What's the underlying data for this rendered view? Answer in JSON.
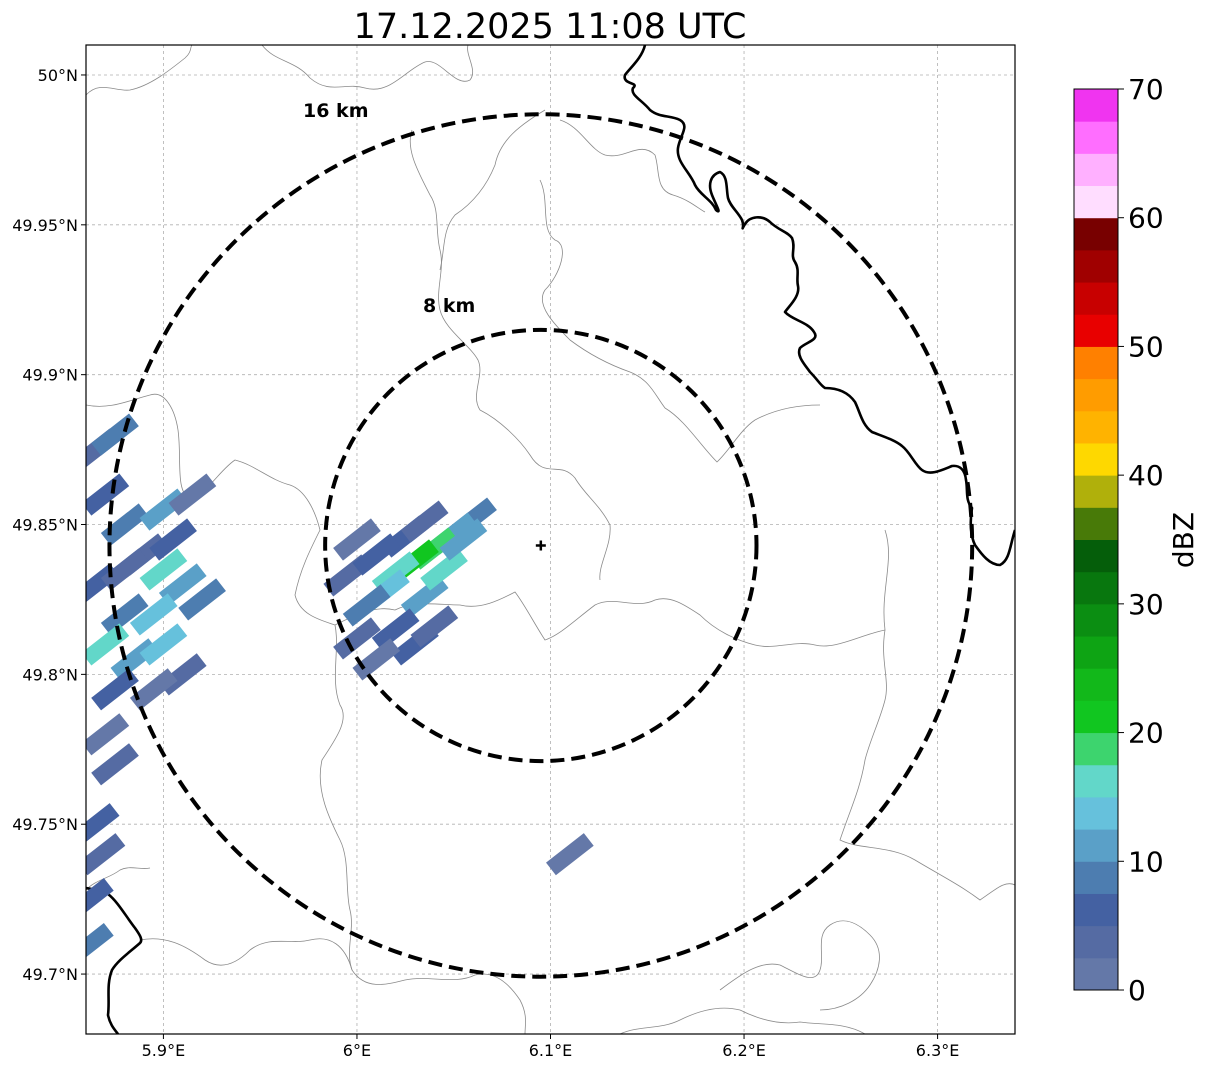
{
  "chart_data": {
    "type": "radar_map",
    "title": "17.12.2025 11:08 UTC",
    "x_ticks": [
      "5.9°E",
      "6°E",
      "6.1°E",
      "6.2°E",
      "6.3°E"
    ],
    "x_tick_values": [
      5.9,
      6.0,
      6.1,
      6.2,
      6.3
    ],
    "y_ticks": [
      "50°N",
      "49.95°N",
      "49.9°N",
      "49.85°N",
      "49.8°N",
      "49.75°N",
      "49.7°N"
    ],
    "y_tick_values": [
      50.0,
      49.95,
      49.9,
      49.85,
      49.8,
      49.75,
      49.7
    ],
    "lon_range": [
      5.86,
      6.34
    ],
    "lat_range": [
      49.68,
      50.01
    ],
    "radar_site": {
      "lon": 6.095,
      "lat": 49.843
    },
    "range_rings": [
      {
        "label": "8 km",
        "radius_km": 8
      },
      {
        "label": "16 km",
        "radius_km": 16
      }
    ],
    "colorbar": {
      "label": "dBZ",
      "ticks": [
        "0",
        "10",
        "20",
        "30",
        "40",
        "50",
        "60",
        "70"
      ],
      "min": 0,
      "max": 70,
      "step": 2.5,
      "colors": [
        "#6478a8",
        "#556ba3",
        "#4461a2",
        "#4d7db0",
        "#5aa0c8",
        "#66c1dc",
        "#62d7c9",
        "#3dd46e",
        "#11c620",
        "#12b81a",
        "#0ea414",
        "#0b8e12",
        "#08770e",
        "#055e0a",
        "#487a08",
        "#b0b00b",
        "#fed800",
        "#ffb300",
        "#ff9c00",
        "#ff8000",
        "#e80000",
        "#c80000",
        "#a00000",
        "#780000",
        "#ffddff",
        "#ffb0ff",
        "#ff6eff",
        "#f034f0"
      ]
    },
    "echo_cells": [
      {
        "lon": 6.06,
        "lat": 49.852,
        "dbz": 8
      },
      {
        "lon": 6.05,
        "lat": 49.847,
        "dbz": 12
      },
      {
        "lon": 6.04,
        "lat": 49.842,
        "dbz": 19
      },
      {
        "lon": 6.03,
        "lat": 49.838,
        "dbz": 22
      },
      {
        "lon": 6.02,
        "lat": 49.834,
        "dbz": 16
      },
      {
        "lon": 6.025,
        "lat": 49.846,
        "dbz": 6
      },
      {
        "lon": 6.015,
        "lat": 49.828,
        "dbz": 14
      },
      {
        "lon": 6.035,
        "lat": 49.826,
        "dbz": 11
      },
      {
        "lon": 6.005,
        "lat": 49.823,
        "dbz": 9
      },
      {
        "lon": 6.02,
        "lat": 49.815,
        "dbz": 7
      },
      {
        "lon": 6.03,
        "lat": 49.81,
        "dbz": 5
      },
      {
        "lon": 6.0,
        "lat": 49.812,
        "dbz": 4
      },
      {
        "lon": 6.04,
        "lat": 49.816,
        "dbz": 3
      },
      {
        "lon": 6.01,
        "lat": 49.805,
        "dbz": 2
      },
      {
        "lon": 5.995,
        "lat": 49.833,
        "dbz": 3
      },
      {
        "lon": 6.045,
        "lat": 49.835,
        "dbz": 15
      },
      {
        "lon": 6.055,
        "lat": 49.845,
        "dbz": 10
      },
      {
        "lon": 6.035,
        "lat": 49.851,
        "dbz": 4
      },
      {
        "lon": 6.01,
        "lat": 49.84,
        "dbz": 6
      },
      {
        "lon": 6.0,
        "lat": 49.845,
        "dbz": 2
      },
      {
        "lon": 5.87,
        "lat": 49.86,
        "dbz": 5
      },
      {
        "lon": 5.88,
        "lat": 49.85,
        "dbz": 8
      },
      {
        "lon": 5.89,
        "lat": 49.84,
        "dbz": 3
      },
      {
        "lon": 5.9,
        "lat": 49.855,
        "dbz": 10
      },
      {
        "lon": 5.905,
        "lat": 49.845,
        "dbz": 6
      },
      {
        "lon": 5.91,
        "lat": 49.83,
        "dbz": 12
      },
      {
        "lon": 5.895,
        "lat": 49.82,
        "dbz": 14
      },
      {
        "lon": 5.88,
        "lat": 49.82,
        "dbz": 9
      },
      {
        "lon": 5.87,
        "lat": 49.81,
        "dbz": 17
      },
      {
        "lon": 5.885,
        "lat": 49.805,
        "dbz": 11
      },
      {
        "lon": 5.9,
        "lat": 49.81,
        "dbz": 13
      },
      {
        "lon": 5.91,
        "lat": 49.8,
        "dbz": 4
      },
      {
        "lon": 5.895,
        "lat": 49.795,
        "dbz": 2
      },
      {
        "lon": 5.875,
        "lat": 49.795,
        "dbz": 6
      },
      {
        "lon": 5.865,
        "lat": 49.83,
        "dbz": 7
      },
      {
        "lon": 5.865,
        "lat": 49.875,
        "dbz": 3
      },
      {
        "lon": 5.875,
        "lat": 49.88,
        "dbz": 8
      },
      {
        "lon": 5.87,
        "lat": 49.78,
        "dbz": 1
      },
      {
        "lon": 5.875,
        "lat": 49.77,
        "dbz": 3
      },
      {
        "lon": 5.865,
        "lat": 49.75,
        "dbz": 7
      },
      {
        "lon": 5.868,
        "lat": 49.74,
        "dbz": 4
      },
      {
        "lon": 5.862,
        "lat": 49.725,
        "dbz": 6
      },
      {
        "lon": 5.862,
        "lat": 49.71,
        "dbz": 9
      },
      {
        "lon": 6.11,
        "lat": 49.74,
        "dbz": 1
      },
      {
        "lon": 5.915,
        "lat": 49.86,
        "dbz": 1
      },
      {
        "lon": 5.92,
        "lat": 49.825,
        "dbz": 8
      },
      {
        "lon": 5.9,
        "lat": 49.835,
        "dbz": 16
      },
      {
        "lon": 5.88,
        "lat": 49.835,
        "dbz": 4
      }
    ]
  }
}
